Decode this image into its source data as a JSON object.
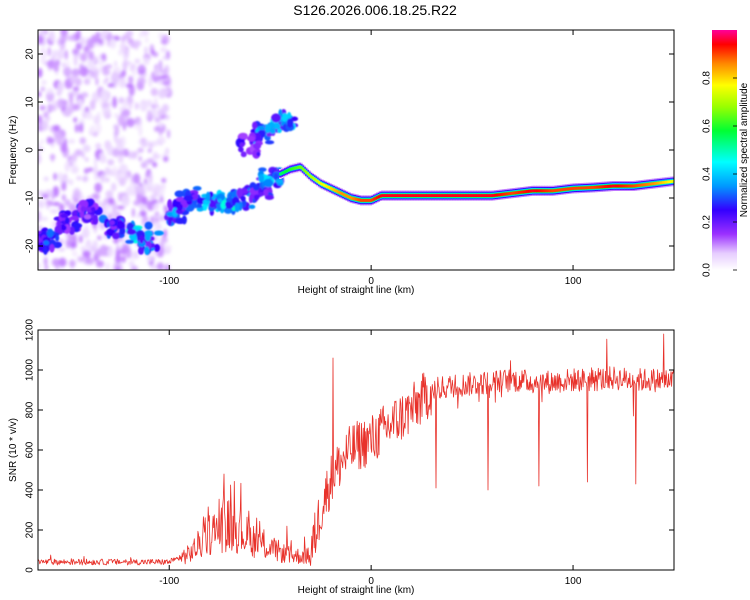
{
  "title": "S126.2026.006.18.25.R22",
  "chart_data": [
    {
      "type": "heatmap",
      "name": "spectrogram",
      "xlabel": "Height of straight line (km)",
      "ylabel": "Frequency (Hz)",
      "xlim": [
        -165,
        150
      ],
      "ylim": [
        -25,
        25
      ],
      "xticks": [
        -100,
        0,
        100
      ],
      "yticks": [
        -20,
        -10,
        0,
        10,
        20
      ],
      "colorbar": {
        "label": "Normalized spectral amplitude",
        "range": [
          0,
          1
        ],
        "ticks": [
          "0.0",
          "0.2",
          "0.4",
          "0.6",
          "0.8"
        ],
        "tick_values": [
          0,
          0.2,
          0.4,
          0.6,
          0.8
        ]
      },
      "ridge": {
        "x": [
          -45,
          -40,
          -35,
          -30,
          -25,
          -20,
          -15,
          -10,
          -5,
          0,
          5,
          10,
          20,
          30,
          40,
          50,
          60,
          70,
          80,
          90,
          100,
          110,
          120,
          130,
          140,
          150
        ],
        "y": [
          -5,
          -4,
          -3.5,
          -5.5,
          -7,
          -8,
          -9,
          -10,
          -10.5,
          -10.5,
          -9.5,
          -9.5,
          -9.5,
          -9.5,
          -9.5,
          -9.5,
          -9.5,
          -9,
          -8.5,
          -8.5,
          -8,
          -7.8,
          -7.5,
          -7.5,
          -7,
          -6.5
        ],
        "amplitude": [
          0.55,
          0.6,
          0.65,
          0.7,
          0.75,
          0.8,
          0.85,
          0.85,
          0.9,
          0.9,
          0.95,
          0.95,
          0.95,
          0.95,
          0.95,
          0.95,
          0.95,
          0.9,
          0.95,
          0.9,
          0.9,
          0.9,
          0.95,
          0.9,
          0.85,
          0.75
        ]
      },
      "noise_region": {
        "x": [
          -165,
          -100
        ],
        "y": [
          -25,
          25
        ],
        "amplitude": 0.1
      },
      "blobs": [
        {
          "x": -150,
          "y": -15,
          "amplitude": 0.25
        },
        {
          "x": -140,
          "y": -13,
          "amplitude": 0.25
        },
        {
          "x": -128,
          "y": -16,
          "amplitude": 0.3
        },
        {
          "x": -115,
          "y": -17.5,
          "amplitude": 0.45
        },
        {
          "x": -110,
          "y": -19,
          "amplitude": 0.35
        },
        {
          "x": -160,
          "y": -19,
          "amplitude": 0.3
        },
        {
          "x": -97,
          "y": -13,
          "amplitude": 0.35
        },
        {
          "x": -90,
          "y": -10,
          "amplitude": 0.3
        },
        {
          "x": -80,
          "y": -11,
          "amplitude": 0.4
        },
        {
          "x": -72,
          "y": -11,
          "amplitude": 0.45
        },
        {
          "x": -63,
          "y": -10,
          "amplitude": 0.35
        },
        {
          "x": -55,
          "y": -8,
          "amplitude": 0.3
        },
        {
          "x": -50,
          "y": -6,
          "amplitude": 0.4
        },
        {
          "x": -43,
          "y": 6,
          "amplitude": 0.4
        },
        {
          "x": -53,
          "y": 3.5,
          "amplitude": 0.35
        },
        {
          "x": -60,
          "y": 1,
          "amplitude": 0.25
        }
      ]
    },
    {
      "type": "line",
      "name": "snr",
      "xlabel": "Height of straight line (km)",
      "ylabel": "SNR (10 * v/v)",
      "xlim": [
        -165,
        150
      ],
      "ylim": [
        0,
        1200
      ],
      "xticks": [
        -100,
        0,
        100
      ],
      "yticks": [
        0,
        200,
        400,
        600,
        800,
        1000,
        1200
      ],
      "color": "#e8312a",
      "envelope": {
        "x": [
          -165,
          -100,
          -90,
          -80,
          -70,
          -60,
          -50,
          -40,
          -30,
          -25,
          -20,
          -15,
          -10,
          -5,
          0,
          10,
          20,
          30,
          40,
          50,
          60,
          70,
          80,
          90,
          100,
          110,
          120,
          130,
          140,
          150
        ],
        "y": [
          40,
          40,
          80,
          180,
          230,
          160,
          110,
          70,
          70,
          300,
          450,
          540,
          600,
          630,
          650,
          730,
          800,
          900,
          920,
          930,
          940,
          950,
          940,
          940,
          950,
          950,
          960,
          950,
          950,
          950
        ]
      },
      "spikes": [
        {
          "x": -19,
          "y": 1060
        },
        {
          "x": -73,
          "y": 480
        },
        {
          "x": 32,
          "y": 410
        },
        {
          "x": 58,
          "y": 400
        },
        {
          "x": 83,
          "y": 420
        },
        {
          "x": 107,
          "y": 440
        },
        {
          "x": 131,
          "y": 430
        },
        {
          "x": 145,
          "y": 1180
        }
      ]
    }
  ]
}
